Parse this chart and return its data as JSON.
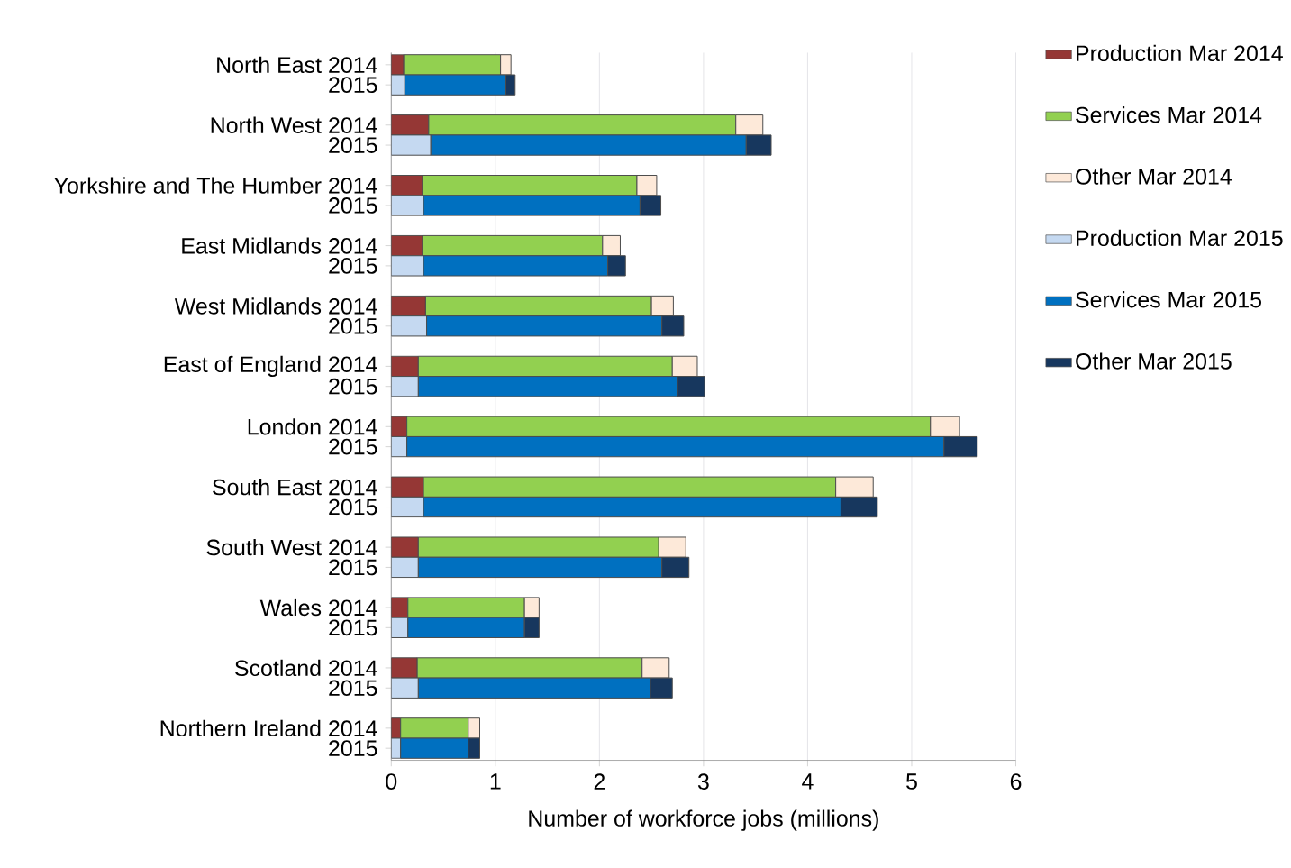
{
  "chart_data": {
    "type": "bar",
    "orientation": "horizontal",
    "stacked": true,
    "xlabel": "Number of workforce jobs (millions)",
    "categories": [
      "North East 2014",
      "2015",
      "North West 2014",
      "2015",
      "Yorkshire and The Humber 2014",
      "2015",
      "East Midlands 2014",
      "2015",
      "West Midlands 2014",
      "2015",
      "East of England 2014",
      "2015",
      "London 2014",
      "2015",
      "South East 2014",
      "2015",
      "South West 2014",
      "2015",
      "Wales 2014",
      "2015",
      "Scotland 2014",
      "2015",
      "Northern Ireland 2014",
      "2015"
    ],
    "series": [
      {
        "name": "Production Mar 2014",
        "color": "#953735",
        "values": [
          0.12,
          null,
          0.36,
          null,
          0.3,
          null,
          0.3,
          null,
          0.33,
          null,
          0.26,
          null,
          0.15,
          null,
          0.31,
          null,
          0.26,
          null,
          0.16,
          null,
          0.25,
          null,
          0.09,
          null
        ]
      },
      {
        "name": "Services Mar 2014",
        "color": "#92d050",
        "values": [
          0.93,
          null,
          2.95,
          null,
          2.06,
          null,
          1.73,
          null,
          2.17,
          null,
          2.44,
          null,
          5.03,
          null,
          3.96,
          null,
          2.31,
          null,
          1.12,
          null,
          2.16,
          null,
          0.65,
          null
        ]
      },
      {
        "name": "Other Mar 2014",
        "color": "#fde9d9",
        "values": [
          0.1,
          null,
          0.26,
          null,
          0.19,
          null,
          0.17,
          null,
          0.21,
          null,
          0.24,
          null,
          0.28,
          null,
          0.36,
          null,
          0.26,
          null,
          0.14,
          null,
          0.26,
          null,
          0.11,
          null
        ]
      },
      {
        "name": "Production Mar 2015",
        "color": "#c5d9f1",
        "values": [
          null,
          0.13,
          null,
          0.38,
          null,
          0.31,
          null,
          0.31,
          null,
          0.34,
          null,
          0.26,
          null,
          0.15,
          null,
          0.31,
          null,
          0.26,
          null,
          0.16,
          null,
          0.26,
          null,
          0.09
        ]
      },
      {
        "name": "Services Mar 2015",
        "color": "#0070c0",
        "values": [
          null,
          0.97,
          null,
          3.03,
          null,
          2.08,
          null,
          1.77,
          null,
          2.26,
          null,
          2.49,
          null,
          5.16,
          null,
          4.01,
          null,
          2.34,
          null,
          1.12,
          null,
          2.23,
          null,
          0.65
        ]
      },
      {
        "name": "Other Mar 2015",
        "color": "#17375e",
        "values": [
          null,
          0.09,
          null,
          0.24,
          null,
          0.2,
          null,
          0.17,
          null,
          0.21,
          null,
          0.26,
          null,
          0.32,
          null,
          0.35,
          null,
          0.26,
          null,
          0.14,
          null,
          0.21,
          null,
          0.11
        ]
      }
    ],
    "xlim": [
      0,
      6
    ],
    "xticks": [
      0,
      1,
      2,
      3,
      4,
      5,
      6
    ],
    "grid": "x",
    "legend": "right"
  }
}
